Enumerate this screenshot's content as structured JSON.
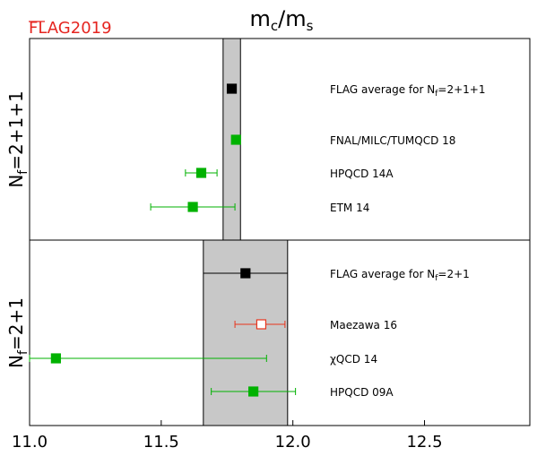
{
  "chart_data": {
    "type": "scatter",
    "title": "m_c/m_s",
    "logo": "FLAG2019",
    "xlim": [
      11.0,
      12.9
    ],
    "xticks": [
      11.0,
      11.5,
      12.0,
      12.5
    ],
    "xtick_labels": [
      "11.0",
      "11.5",
      "12.0",
      "12.5"
    ],
    "grid": false,
    "colors": {
      "green": "#00b200",
      "red": "#e8341c",
      "black": "#000000",
      "band": "#c8c8c8",
      "logo": "#e52520"
    },
    "panels": [
      {
        "label_main": "N",
        "label_sub": "f",
        "label_rest": "=2+1+1",
        "band": {
          "center": 11.768,
          "low": 11.735,
          "high": 11.801
        },
        "points": [
          {
            "name": "FLAG average for ",
            "name_main": "N",
            "name_sub": "f",
            "name_rest": "=2+1+1",
            "value": 11.768,
            "err_low": 11.768,
            "err_high": 11.768,
            "color": "black",
            "marker": "filled"
          },
          {
            "name": "FNAL/MILC/TUMQCD 18",
            "value": 11.784,
            "err_low": 11.784,
            "err_high": 11.784,
            "color": "green",
            "marker": "filled"
          },
          {
            "name": "HPQCD 14A",
            "value": 11.652,
            "err_low": 11.592,
            "err_high": 11.712,
            "color": "green",
            "marker": "filled"
          },
          {
            "name": "ETM 14",
            "value": 11.62,
            "err_low": 11.46,
            "err_high": 11.78,
            "color": "green",
            "marker": "filled"
          }
        ]
      },
      {
        "label_main": "N",
        "label_sub": "f",
        "label_rest": "=2+1",
        "band": {
          "center": 11.82,
          "low": 11.66,
          "high": 11.98
        },
        "points": [
          {
            "name": "FLAG average for ",
            "name_main": "N",
            "name_sub": "f",
            "name_rest": "=2+1",
            "value": 11.82,
            "err_low": 11.82,
            "err_high": 11.82,
            "color": "black",
            "marker": "filled"
          },
          {
            "name": "Maezawa 16",
            "value": 11.88,
            "err_low": 11.78,
            "err_high": 11.97,
            "color": "red",
            "marker": "open"
          },
          {
            "name": "χQCD 14",
            "value": 11.1,
            "err_low": 11.0,
            "err_high": 11.9,
            "color": "green",
            "marker": "filled"
          },
          {
            "name": "HPQCD 09A",
            "value": 11.85,
            "err_low": 11.69,
            "err_high": 12.01,
            "color": "green",
            "marker": "filled"
          }
        ]
      }
    ]
  }
}
